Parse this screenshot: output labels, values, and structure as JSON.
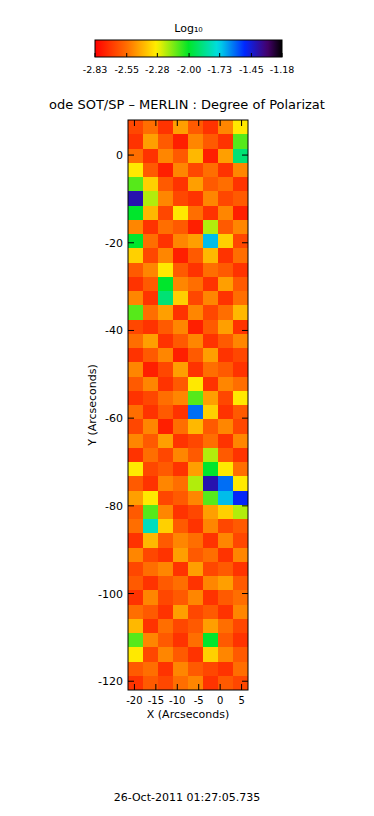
{
  "chart_data": {
    "type": "heatmap",
    "title": "ode SOT/SP – MERLIN : Degree of Polarizat",
    "xlabel": "X (Arcseconds)",
    "ylabel": "Y (Arcseconds)",
    "annotation": "26-Oct-2011 01:27:05.735",
    "xlim": [
      -21.5,
      6.5
    ],
    "ylim": [
      -122,
      8
    ],
    "xticks": [
      -20,
      -15,
      -10,
      -5,
      0,
      5
    ],
    "yticks": [
      0,
      -20,
      -40,
      -60,
      -80,
      -100,
      -120
    ],
    "x_edges": [
      -21.5,
      -18,
      -14.5,
      -11,
      -7.5,
      -4,
      -0.5,
      3,
      6.5
    ],
    "y_edges": [
      8,
      4.75,
      1.5,
      -1.75,
      -5,
      -8.25,
      -11.5,
      -14.75,
      -18,
      -21.25,
      -24.5,
      -27.75,
      -31,
      -34.25,
      -37.5,
      -40.75,
      -44,
      -47.25,
      -50.5,
      -53.75,
      -57,
      -60.25,
      -63.5,
      -66.75,
      -70,
      -73.25,
      -76.5,
      -79.75,
      -83,
      -86.25,
      -89.5,
      -92.75,
      -96,
      -99.25,
      -102.5,
      -105.75,
      -109,
      -112.25,
      -115.5,
      -118.75,
      -122
    ],
    "cells": [
      [
        -2.65,
        -2.55,
        -2.7,
        -2.45,
        -2.6,
        -2.7,
        -2.5,
        -2.3
      ],
      [
        -2.7,
        -2.45,
        -2.6,
        -2.75,
        -2.5,
        -2.6,
        -2.7,
        -2.1
      ],
      [
        -2.55,
        -2.7,
        -2.5,
        -2.6,
        -2.4,
        -2.75,
        -2.45,
        -1.9
      ],
      [
        -2.3,
        -2.6,
        -2.75,
        -2.5,
        -2.65,
        -2.55,
        -2.7,
        -2.5
      ],
      [
        -2.1,
        -2.35,
        -2.6,
        -2.7,
        -2.45,
        -2.6,
        -2.55,
        -2.7
      ],
      [
        -1.4,
        -2.2,
        -2.5,
        -2.65,
        -2.7,
        -2.5,
        -2.65,
        -2.6
      ],
      [
        -2.0,
        -2.4,
        -2.65,
        -2.3,
        -2.55,
        -2.7,
        -2.5,
        -2.75
      ],
      [
        -2.5,
        -2.7,
        -2.55,
        -2.6,
        -2.75,
        -2.2,
        -2.6,
        -2.5
      ],
      [
        -2.0,
        -2.55,
        -2.7,
        -2.5,
        -2.45,
        -1.7,
        -2.35,
        -2.65
      ],
      [
        -2.35,
        -2.65,
        -2.5,
        -2.75,
        -2.6,
        -2.4,
        -2.7,
        -2.55
      ],
      [
        -2.6,
        -2.5,
        -2.3,
        -2.6,
        -2.7,
        -2.55,
        -2.6,
        -2.7
      ],
      [
        -2.7,
        -2.6,
        -2.0,
        -2.5,
        -2.55,
        -2.7,
        -2.45,
        -2.6
      ],
      [
        -2.5,
        -2.7,
        -1.9,
        -2.35,
        -2.65,
        -2.5,
        -2.7,
        -2.55
      ],
      [
        -2.1,
        -2.55,
        -2.45,
        -2.7,
        -2.5,
        -2.65,
        -2.55,
        -2.4
      ],
      [
        -2.65,
        -2.7,
        -2.6,
        -2.5,
        -2.75,
        -2.6,
        -2.45,
        -2.7
      ],
      [
        -2.55,
        -2.45,
        -2.7,
        -2.6,
        -2.5,
        -2.7,
        -2.6,
        -2.5
      ],
      [
        -2.7,
        -2.6,
        -2.5,
        -2.75,
        -2.6,
        -2.45,
        -2.7,
        -2.65
      ],
      [
        -2.5,
        -2.75,
        -2.65,
        -2.45,
        -2.7,
        -2.55,
        -2.6,
        -2.7
      ],
      [
        -2.6,
        -2.5,
        -2.7,
        -2.6,
        -2.3,
        -2.7,
        -2.5,
        -2.55
      ],
      [
        -2.7,
        -2.65,
        -2.55,
        -2.5,
        -2.1,
        -2.45,
        -2.65,
        -2.3
      ],
      [
        -2.55,
        -2.7,
        -2.6,
        -2.7,
        -1.6,
        -2.35,
        -2.7,
        -2.6
      ],
      [
        -2.65,
        -2.5,
        -2.75,
        -2.55,
        -2.4,
        -2.6,
        -2.5,
        -2.65
      ],
      [
        -2.5,
        -2.6,
        -2.45,
        -2.7,
        -2.65,
        -2.55,
        -2.7,
        -2.5
      ],
      [
        -2.7,
        -2.55,
        -2.65,
        -2.5,
        -2.6,
        -2.2,
        -2.6,
        -2.7
      ],
      [
        -2.3,
        -2.65,
        -2.6,
        -2.7,
        -2.45,
        -2.0,
        -2.3,
        -2.55
      ],
      [
        -2.6,
        -2.7,
        -2.5,
        -2.55,
        -2.2,
        -1.4,
        -1.6,
        -2.3
      ],
      [
        -2.45,
        -2.3,
        -2.65,
        -2.6,
        -2.5,
        -2.1,
        -1.7,
        -1.5
      ],
      [
        -2.6,
        -2.1,
        -2.5,
        -2.7,
        -2.65,
        -2.45,
        -2.35,
        -2.2
      ],
      [
        -2.55,
        -1.8,
        -2.35,
        -2.6,
        -2.7,
        -2.5,
        -2.65,
        -2.6
      ],
      [
        -2.7,
        -2.4,
        -2.6,
        -2.5,
        -2.55,
        -2.7,
        -2.5,
        -2.65
      ],
      [
        -2.5,
        -2.65,
        -2.7,
        -2.45,
        -2.6,
        -2.55,
        -2.7,
        -2.5
      ],
      [
        -2.65,
        -2.55,
        -2.5,
        -2.7,
        -2.45,
        -2.65,
        -2.6,
        -2.7
      ],
      [
        -2.6,
        -2.7,
        -2.6,
        -2.55,
        -2.7,
        -2.5,
        -2.45,
        -2.6
      ],
      [
        -2.7,
        -2.5,
        -2.65,
        -2.6,
        -2.5,
        -2.7,
        -2.6,
        -2.55
      ],
      [
        -2.55,
        -2.6,
        -2.7,
        -2.45,
        -2.65,
        -2.6,
        -2.7,
        -2.5
      ],
      [
        -2.4,
        -2.7,
        -2.55,
        -2.65,
        -2.6,
        -2.45,
        -2.55,
        -2.65
      ],
      [
        -2.1,
        -2.5,
        -2.6,
        -2.7,
        -2.55,
        -2.0,
        -2.6,
        -2.7
      ],
      [
        -2.3,
        -2.65,
        -2.5,
        -2.6,
        -2.7,
        -2.35,
        -2.5,
        -2.6
      ],
      [
        -2.6,
        -2.55,
        -2.7,
        -2.5,
        -2.6,
        -2.65,
        -2.7,
        -2.55
      ],
      [
        -2.7,
        -2.6,
        -2.65,
        -2.55,
        -2.5,
        -2.7,
        -2.6,
        -2.65
      ]
    ],
    "colorbar": {
      "label": "Log₁₀",
      "range": [
        -2.83,
        -1.18
      ],
      "ticks": [
        -2.83,
        -2.55,
        -2.28,
        {
          "value": -2,
          "label": "-2.00"
        },
        -1.73,
        -1.45,
        -1.18
      ]
    }
  }
}
